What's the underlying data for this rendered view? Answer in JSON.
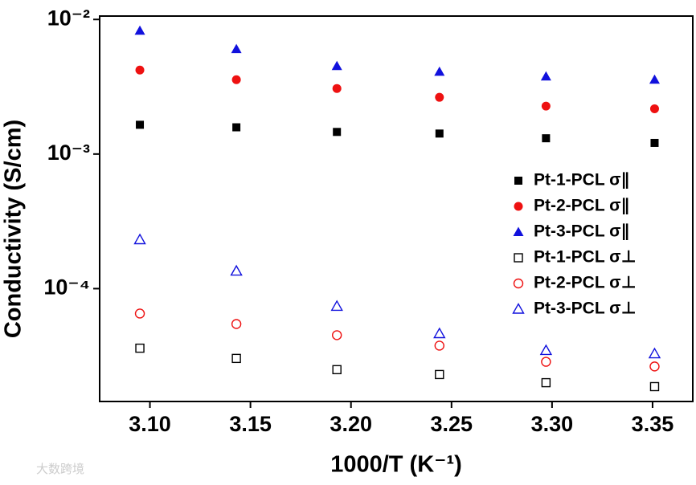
{
  "chart_data": {
    "type": "scatter",
    "x_label": "1000/T (K⁻¹)",
    "y_label": "Conductivity (S/cm)",
    "watermark": "大数跨境",
    "log_y": true,
    "legend": "right",
    "xlim": [
      3.075,
      3.37
    ],
    "ylim": [
      1.45e-05,
      0.0106
    ],
    "xticks": [
      {
        "value": 3.1,
        "label": "3.10"
      },
      3.15,
      {
        "value": 3.2,
        "label": "3.20"
      },
      3.25,
      {
        "value": 3.3,
        "label": "3.30"
      },
      3.35
    ],
    "yticks": [
      {
        "value": 0.0001,
        "label": "10⁻⁴"
      },
      {
        "value": 0.001,
        "label": "10⁻³"
      },
      {
        "value": 0.01,
        "label": "10⁻²"
      }
    ],
    "x": [
      3.095,
      3.143,
      3.193,
      3.244,
      3.297,
      3.351
    ],
    "series": [
      {
        "name": "Pt-1-PCL σ∥",
        "color": "#000000",
        "marker": "square",
        "filled": true,
        "values": [
          0.00165,
          0.00158,
          0.00146,
          0.00142,
          0.00131,
          0.00121
        ]
      },
      {
        "name": "Pt-2-PCL σ∥",
        "color": "#ee1111",
        "marker": "circle",
        "filled": true,
        "values": [
          0.00421,
          0.00357,
          0.00307,
          0.00264,
          0.00227,
          0.00217
        ]
      },
      {
        "name": "Pt-3-PCL σ∥",
        "color": "#1111dd",
        "marker": "triangle",
        "filled": true,
        "values": [
          0.00825,
          0.00602,
          0.00451,
          0.00409,
          0.00377,
          0.00357
        ]
      },
      {
        "name": "Pt-1-PCL σ⊥",
        "color": "#000000",
        "marker": "square",
        "filled": false,
        "values": [
          3.61e-05,
          3.03e-05,
          2.5e-05,
          2.3e-05,
          2e-05,
          1.87e-05
        ]
      },
      {
        "name": "Pt-2-PCL σ⊥",
        "color": "#ee1111",
        "marker": "circle",
        "filled": false,
        "values": [
          6.53e-05,
          5.46e-05,
          4.51e-05,
          3.77e-05,
          2.86e-05,
          2.64e-05
        ]
      },
      {
        "name": "Pt-3-PCL σ⊥",
        "color": "#1111dd",
        "marker": "triangle",
        "filled": false,
        "values": [
          0.000231,
          0.000135,
          7.39e-05,
          4.63e-05,
          3.47e-05,
          3.28e-05
        ]
      }
    ]
  }
}
